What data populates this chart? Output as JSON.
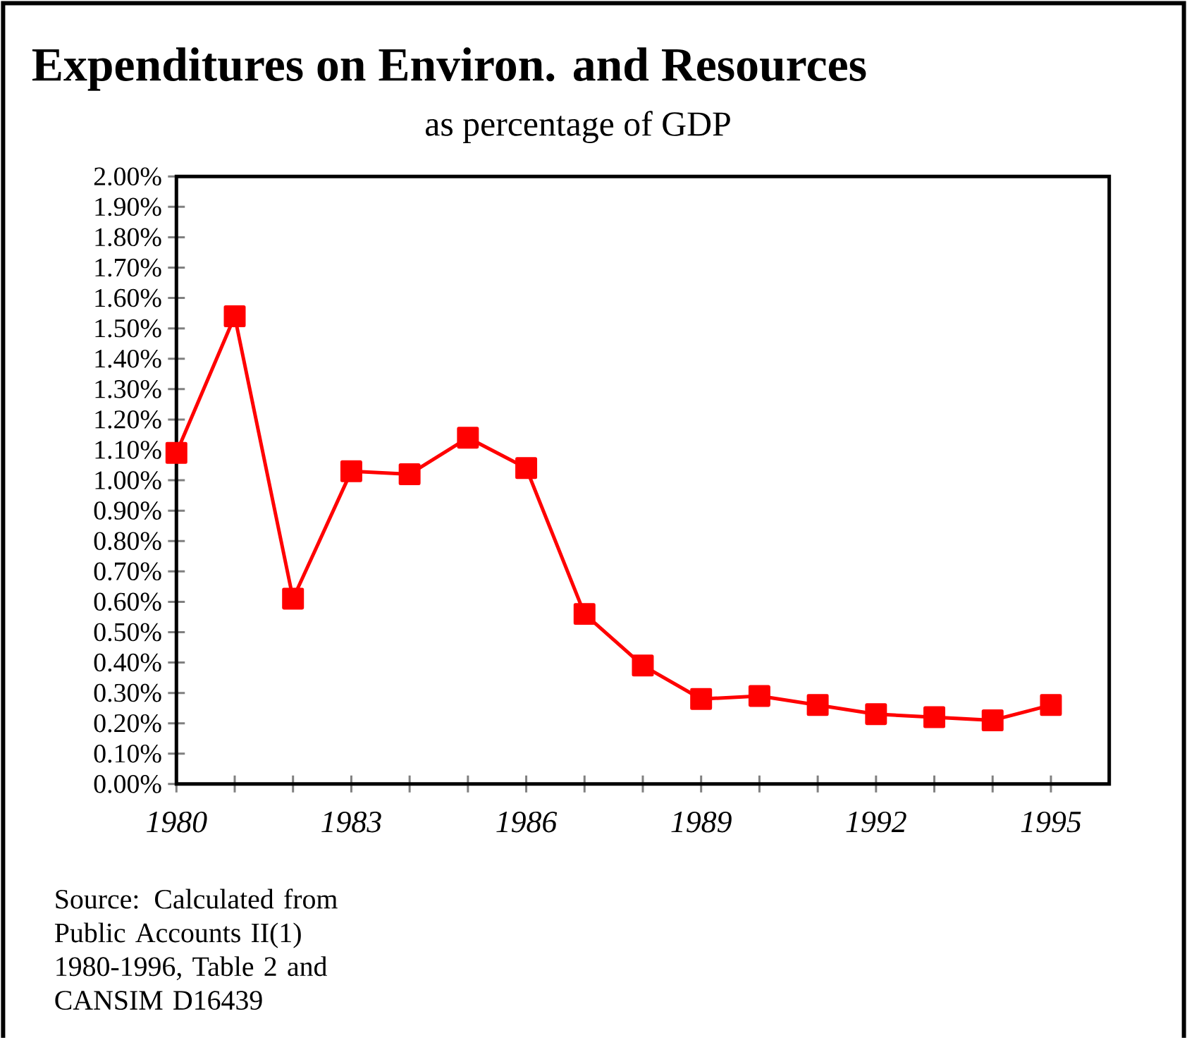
{
  "chart_data": {
    "type": "line",
    "title": "Expenditures on Environ. and Resources",
    "subtitle": "as percentage of GDP",
    "x": [
      1980,
      1981,
      1982,
      1983,
      1984,
      1985,
      1986,
      1987,
      1988,
      1989,
      1990,
      1991,
      1992,
      1993,
      1994,
      1995
    ],
    "values": [
      1.09,
      1.54,
      0.61,
      1.03,
      1.02,
      1.14,
      1.04,
      0.56,
      0.39,
      0.28,
      0.29,
      0.26,
      0.23,
      0.22,
      0.21,
      0.26
    ],
    "color": "#ff0000",
    "marker": "square",
    "line_style": "solid",
    "grid": false,
    "xlim": [
      1980,
      1996
    ],
    "xticks": [
      1980,
      {
        "value": 1981,
        "label": null
      },
      {
        "value": 1982,
        "label": null
      },
      1983,
      {
        "value": 1984,
        "label": null
      },
      {
        "value": 1985,
        "label": null
      },
      1986,
      {
        "value": 1987,
        "label": null
      },
      {
        "value": 1988,
        "label": null
      },
      1989,
      {
        "value": 1990,
        "label": null
      },
      {
        "value": 1991,
        "label": null
      },
      1992,
      {
        "value": 1993,
        "label": null
      },
      {
        "value": 1994,
        "label": null
      },
      1995
    ],
    "ylim": [
      0,
      2
    ],
    "yticks": [
      {
        "value": 0,
        "label": "0.00%"
      },
      {
        "value": 0.1,
        "label": "0.10%"
      },
      {
        "value": 0.2,
        "label": "0.20%"
      },
      {
        "value": 0.3,
        "label": "0.30%"
      },
      {
        "value": 0.4,
        "label": "0.40%"
      },
      {
        "value": 0.5,
        "label": "0.50%"
      },
      {
        "value": 0.6,
        "label": "0.60%"
      },
      {
        "value": 0.7,
        "label": "0.70%"
      },
      {
        "value": 0.8,
        "label": "0.80%"
      },
      {
        "value": 0.9,
        "label": "0.90%"
      },
      {
        "value": 1.0,
        "label": "1.00%"
      },
      {
        "value": 1.1,
        "label": "1.10%"
      },
      {
        "value": 1.2,
        "label": "1.20%"
      },
      {
        "value": 1.3,
        "label": "1.30%"
      },
      {
        "value": 1.4,
        "label": "1.40%"
      },
      {
        "value": 1.5,
        "label": "1.50%"
      },
      {
        "value": 1.6,
        "label": "1.60%"
      },
      {
        "value": 1.7,
        "label": "1.70%"
      },
      {
        "value": 1.8,
        "label": "1.80%"
      },
      {
        "value": 1.9,
        "label": "1.90%"
      },
      {
        "value": 2.0,
        "label": "2.00%"
      }
    ],
    "annotations": [
      "Source:  Calculated from Public Accounts II(1) 1980-1996,  Table 2 and CANSIM D16439"
    ]
  }
}
